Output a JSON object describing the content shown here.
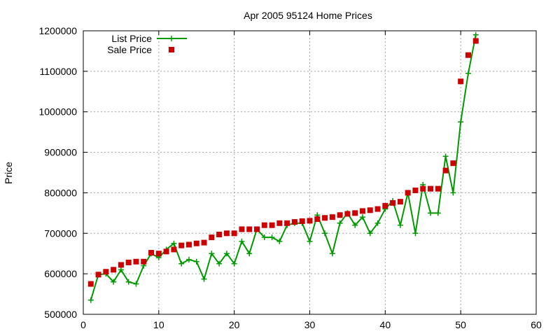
{
  "chart_data": {
    "type": "line",
    "title": "Apr 2005 95124 Home Prices",
    "xlabel": "",
    "ylabel": "Price",
    "xlim": [
      0,
      60
    ],
    "ylim": [
      500000,
      1200000
    ],
    "x_ticks": [
      0,
      10,
      20,
      30,
      40,
      50,
      60
    ],
    "y_ticks": [
      500000,
      600000,
      700000,
      800000,
      900000,
      1000000,
      1100000,
      1200000
    ],
    "grid": true,
    "legend_position": "top-left",
    "x": [
      1,
      2,
      3,
      4,
      5,
      6,
      7,
      8,
      9,
      10,
      11,
      12,
      13,
      14,
      15,
      16,
      17,
      18,
      19,
      20,
      21,
      22,
      23,
      24,
      25,
      26,
      27,
      28,
      29,
      30,
      31,
      32,
      33,
      34,
      35,
      36,
      37,
      38,
      39,
      40,
      41,
      42,
      43,
      44,
      45,
      46,
      47,
      48,
      49,
      50,
      51,
      52
    ],
    "series": [
      {
        "name": "List Price",
        "style": "line+cross",
        "color": "#009900",
        "values": [
          535000,
          598000,
          600000,
          580000,
          610000,
          580000,
          575000,
          620000,
          650000,
          640000,
          660000,
          675000,
          625000,
          635000,
          630000,
          587000,
          650000,
          625000,
          650000,
          625000,
          680000,
          650000,
          710000,
          690000,
          690000,
          680000,
          720000,
          725000,
          725000,
          680000,
          745000,
          700000,
          650000,
          725000,
          750000,
          720000,
          740000,
          700000,
          725000,
          760000,
          780000,
          720000,
          800000,
          700000,
          820000,
          750000,
          750000,
          890000,
          800000,
          975000,
          1095000,
          1190000
        ]
      },
      {
        "name": "Sale Price",
        "style": "square-points",
        "color": "#cc0000",
        "values": [
          575000,
          598000,
          605000,
          610000,
          622000,
          628000,
          630000,
          630000,
          652000,
          650000,
          655000,
          660000,
          670000,
          672000,
          675000,
          677000,
          690000,
          697000,
          700000,
          700000,
          710000,
          710000,
          710000,
          720000,
          720000,
          725000,
          725000,
          728000,
          730000,
          731000,
          735000,
          738000,
          740000,
          745000,
          748000,
          750000,
          755000,
          757000,
          760000,
          768000,
          775000,
          778000,
          800000,
          806000,
          810000,
          810000,
          810000,
          855000,
          873000,
          1075000,
          1140000,
          1175000
        ]
      }
    ]
  }
}
